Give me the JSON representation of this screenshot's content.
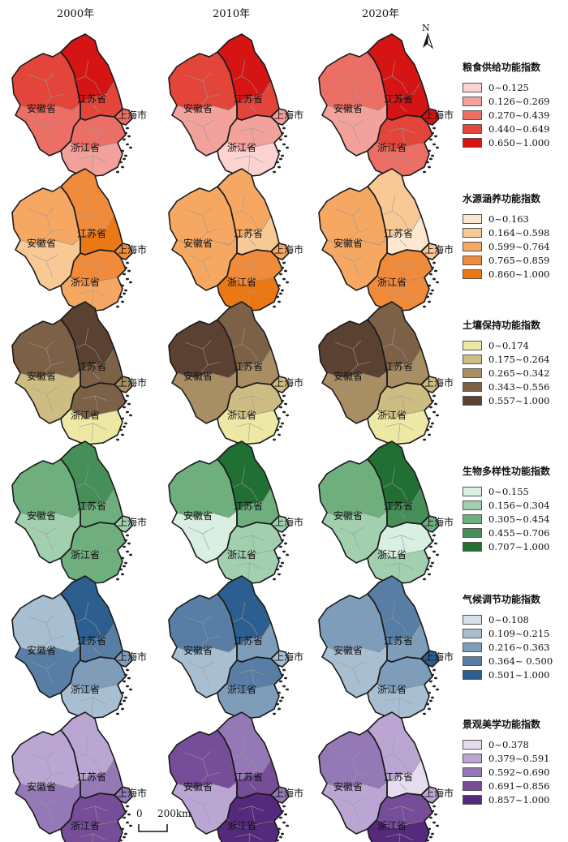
{
  "years": [
    "2000年",
    "2010年",
    "2020年"
  ],
  "provinces": {
    "anhui": "安徽省",
    "jiangsu": "江苏省",
    "zhejiang": "浙江省",
    "shanghai": "上海市"
  },
  "north_arrow": "N",
  "scale_bar": {
    "zero": "0",
    "distance": "200km"
  },
  "border_color": "#1a1a1a",
  "indices": [
    {
      "title": "粮食供给功能指数",
      "classes": [
        "0~0.125",
        "0.126~0.269",
        "0.270~0.439",
        "0.440~0.649",
        "0.650~1.000"
      ],
      "colors": [
        "#fcd3d1",
        "#f3a19b",
        "#ec6f66",
        "#e4453b",
        "#d61414"
      ],
      "levels": [
        {
          "anhui_n": 3,
          "anhui_s": 2,
          "jiangsu_n": 4,
          "jiangsu_s": 3,
          "zhejiang_n": 2,
          "zhejiang_s": 1,
          "shanghai": 2
        },
        {
          "anhui_n": 3,
          "anhui_s": 1,
          "jiangsu_n": 4,
          "jiangsu_s": 3,
          "zhejiang_n": 1,
          "zhejiang_s": 0,
          "shanghai": 1
        },
        {
          "anhui_n": 2,
          "anhui_s": 1,
          "jiangsu_n": 4,
          "jiangsu_s": 4,
          "zhejiang_n": 3,
          "zhejiang_s": 2,
          "shanghai": 4
        }
      ]
    },
    {
      "title": "水源涵养功能指数",
      "classes": [
        "0~0.163",
        "0.164~0.598",
        "0.599~0.764",
        "0.765~0.859",
        "0.860~1.000"
      ],
      "colors": [
        "#fde8cf",
        "#f9c995",
        "#f6a862",
        "#f18b3c",
        "#ec7814"
      ],
      "levels": [
        {
          "anhui_n": 2,
          "anhui_s": 1,
          "jiangsu_n": 3,
          "jiangsu_s": 4,
          "zhejiang_n": 3,
          "zhejiang_s": 2,
          "shanghai": 3
        },
        {
          "anhui_n": 2,
          "anhui_s": 2,
          "jiangsu_n": 2,
          "jiangsu_s": 1,
          "zhejiang_n": 3,
          "zhejiang_s": 4,
          "shanghai": 2
        },
        {
          "anhui_n": 2,
          "anhui_s": 2,
          "jiangsu_n": 1,
          "jiangsu_s": 0,
          "zhejiang_n": 3,
          "zhejiang_s": 3,
          "shanghai": 1
        }
      ]
    },
    {
      "title": "土壤保持功能指数",
      "classes": [
        "0~0.174",
        "0.175~0.264",
        "0.265~0.342",
        "0.343~0.556",
        "0.557~1.000"
      ],
      "colors": [
        "#ede9a4",
        "#cdbd82",
        "#a88e62",
        "#7d6146",
        "#5a4132"
      ],
      "levels": [
        {
          "anhui_n": 3,
          "anhui_s": 1,
          "jiangsu_n": 4,
          "jiangsu_s": 3,
          "zhejiang_n": 3,
          "zhejiang_s": 0,
          "shanghai": 2
        },
        {
          "anhui_n": 4,
          "anhui_s": 2,
          "jiangsu_n": 3,
          "jiangsu_s": 2,
          "zhejiang_n": 1,
          "zhejiang_s": 0,
          "shanghai": 1
        },
        {
          "anhui_n": 4,
          "anhui_s": 2,
          "jiangsu_n": 3,
          "jiangsu_s": 2,
          "zhejiang_n": 1,
          "zhejiang_s": 0,
          "shanghai": 1
        }
      ]
    },
    {
      "title": "生物多样性功能指数",
      "classes": [
        "0~0.155",
        "0.156~0.304",
        "0.305~0.454",
        "0.455~0.706",
        "0.707~1.000"
      ],
      "colors": [
        "#d9efe1",
        "#a2d0ae",
        "#6fae7d",
        "#468f58",
        "#226f34"
      ],
      "levels": [
        {
          "anhui_n": 2,
          "anhui_s": 1,
          "jiangsu_n": 3,
          "jiangsu_s": 2,
          "zhejiang_n": 2,
          "zhejiang_s": 2,
          "shanghai": 1
        },
        {
          "anhui_n": 2,
          "anhui_s": 0,
          "jiangsu_n": 4,
          "jiangsu_s": 2,
          "zhejiang_n": 1,
          "zhejiang_s": 1,
          "shanghai": 1
        },
        {
          "anhui_n": 2,
          "anhui_s": 1,
          "jiangsu_n": 4,
          "jiangsu_s": 3,
          "zhejiang_n": 0,
          "zhejiang_s": 1,
          "shanghai": 2
        }
      ]
    },
    {
      "title": "气候调节功能指数",
      "classes": [
        "0~0.108",
        "0.109~0.215",
        "0.216~0.363",
        "0.364~ 0.500",
        "0.501~1.000"
      ],
      "colors": [
        "#d4e0ea",
        "#a8bfd2",
        "#7e9dbb",
        "#587ea5",
        "#2c5f8f"
      ],
      "levels": [
        {
          "anhui_n": 1,
          "anhui_s": 3,
          "jiangsu_n": 4,
          "jiangsu_s": 3,
          "zhejiang_n": 2,
          "zhejiang_s": 1,
          "shanghai": 2
        },
        {
          "anhui_n": 3,
          "anhui_s": 1,
          "jiangsu_n": 4,
          "jiangsu_s": 2,
          "zhejiang_n": 3,
          "zhejiang_s": 2,
          "shanghai": 1
        },
        {
          "anhui_n": 2,
          "anhui_s": 1,
          "jiangsu_n": 3,
          "jiangsu_s": 2,
          "zhejiang_n": 2,
          "zhejiang_s": 1,
          "shanghai": 4
        }
      ]
    },
    {
      "title": "景观美学功能指数",
      "classes": [
        "0~0.378",
        "0.379~0.591",
        "0.592~0.690",
        "0.691~0.856",
        "0.857~1.000"
      ],
      "colors": [
        "#e5dcf0",
        "#bba6d3",
        "#9578b6",
        "#754d98",
        "#55297b"
      ],
      "levels": [
        {
          "anhui_n": 1,
          "anhui_s": 2,
          "jiangsu_n": 1,
          "jiangsu_s": 2,
          "zhejiang_n": 3,
          "zhejiang_s": 3,
          "shanghai": 2
        },
        {
          "anhui_n": 3,
          "anhui_s": 1,
          "jiangsu_n": 2,
          "jiangsu_s": 3,
          "zhejiang_n": 4,
          "zhejiang_s": 4,
          "shanghai": 2
        },
        {
          "anhui_n": 2,
          "anhui_s": 1,
          "jiangsu_n": 1,
          "jiangsu_s": 0,
          "zhejiang_n": 3,
          "zhejiang_s": 4,
          "shanghai": 1
        }
      ]
    }
  ]
}
